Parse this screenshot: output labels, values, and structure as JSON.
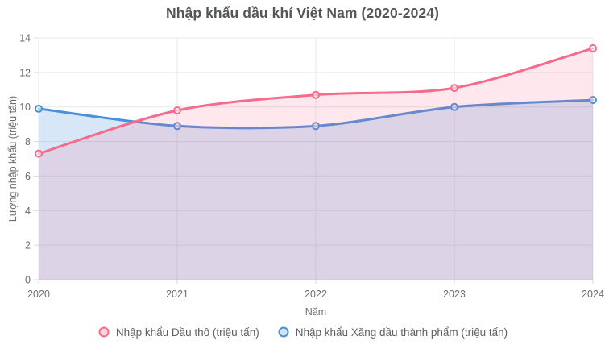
{
  "chart_data": {
    "type": "line",
    "title": "Nhập khẩu dầu khí Việt Nam (2020-2024)",
    "categories": [
      "2020",
      "2021",
      "2022",
      "2023",
      "2024"
    ],
    "series": [
      {
        "id": "crude-oil",
        "name": "Nhập khẩu Dầu thô (triệu tấn)",
        "values": [
          7.3,
          9.8,
          10.7,
          11.1,
          13.4
        ],
        "color": "#f76a8c",
        "fill": "rgba(248,105,140,0.16)",
        "marker_fill": "#fbd4de"
      },
      {
        "id": "refined-products",
        "name": "Nhập khẩu Xăng dầu thành phẩm (triệu tấn)",
        "values": [
          9.9,
          8.9,
          8.9,
          10.0,
          10.4
        ],
        "color": "#4a90d9",
        "fill": "rgba(74,144,217,0.22)",
        "marker_fill": "#cfe6f8"
      }
    ],
    "xlabel": "Năm",
    "ylabel": "Lượng nhập khẩu (triệu tấn)",
    "ylim": [
      0,
      14
    ],
    "ytick_step": 2,
    "grid": true,
    "legend_position": "bottom",
    "style": {
      "grid_color": "#e8e8e8",
      "tick_color": "#d8d8d8",
      "text_color": "#6d6d6d",
      "title_color": "#54565a"
    }
  }
}
